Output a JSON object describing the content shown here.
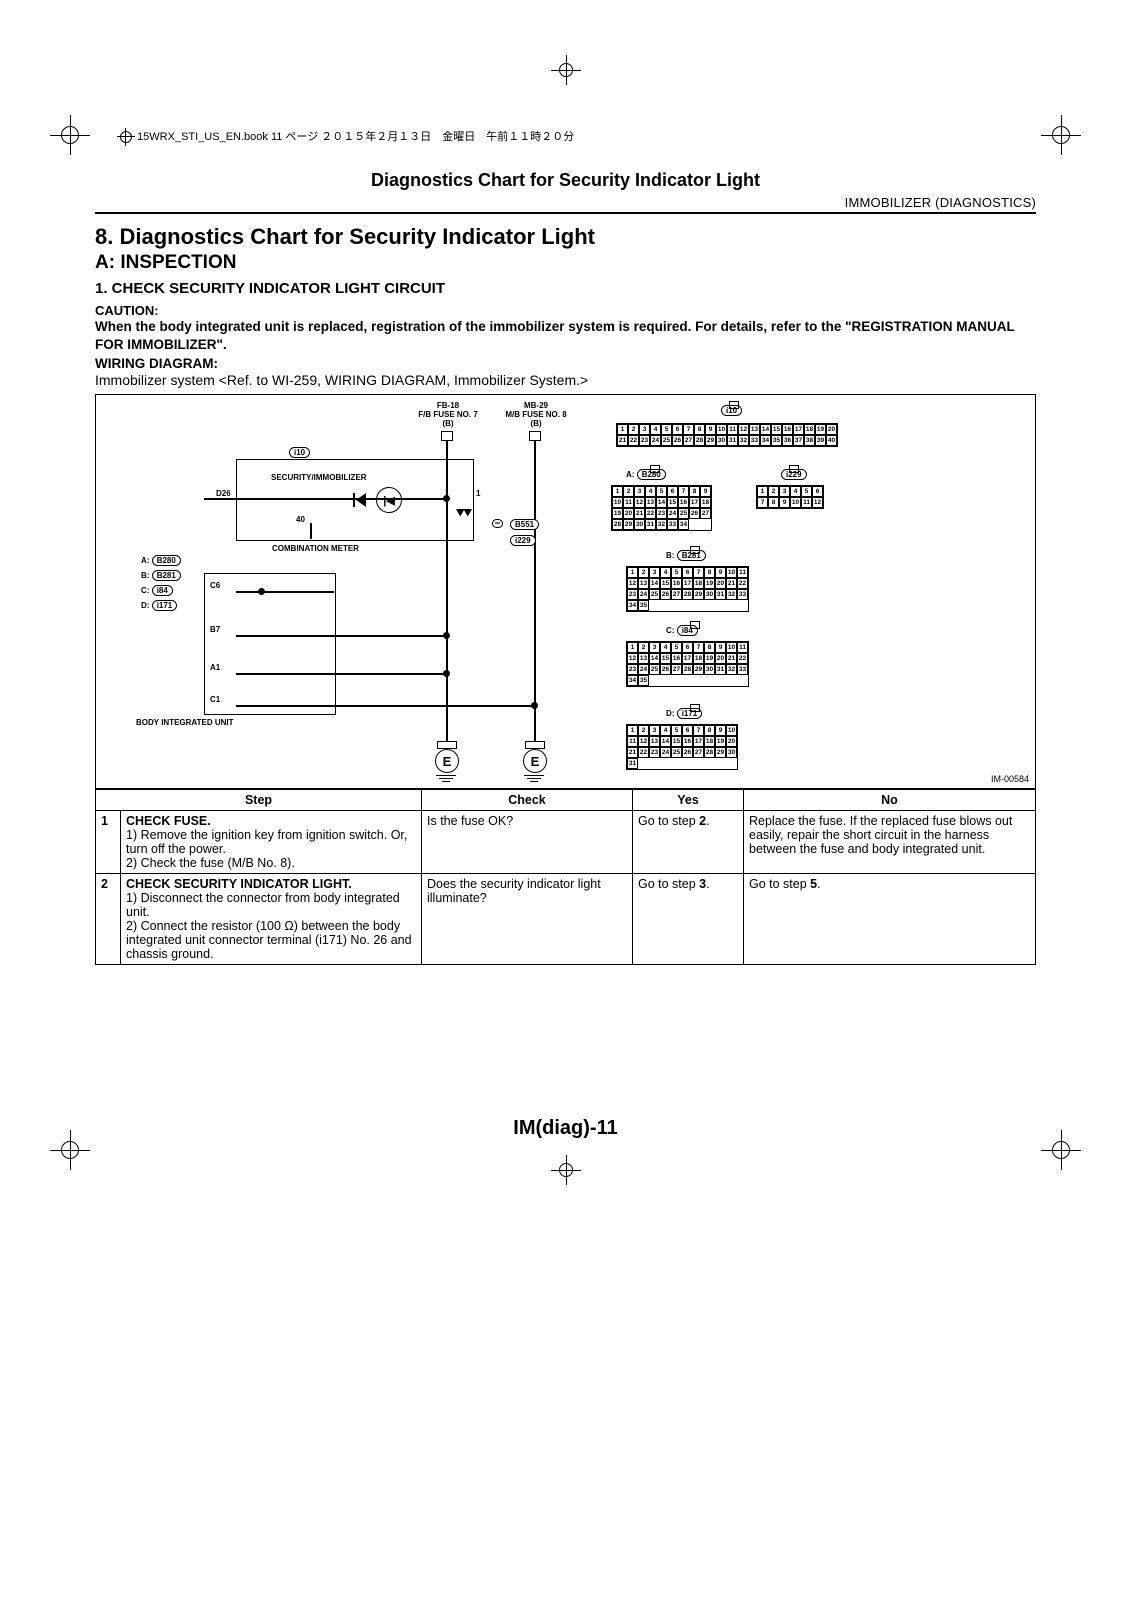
{
  "bookline": "15WRX_STI_US_EN.book  11 ページ   ２０１５年２月１３日　金曜日　午前１１時２０分",
  "running_head": "Diagnostics Chart for Security Indicator Light",
  "subhead_right": "IMMOBILIZER (DIAGNOSTICS)",
  "h1": "8.  Diagnostics Chart for Security Indicator Light",
  "h2": "A:  INSPECTION",
  "h3": "1.  CHECK SECURITY INDICATOR LIGHT CIRCUIT",
  "caution_label": "CAUTION:",
  "caution_text": "When the body integrated unit is replaced, registration of the immobilizer system is required. For details, refer to the \"REGISTRATION MANUAL FOR IMMOBILIZER\".",
  "wiring_label": "WIRING DIAGRAM:",
  "ref_text": "Immobilizer system <Ref. to WI-259, WIRING DIAGRAM, Immobilizer System.>",
  "diagram": {
    "fuse1_top": "FB-18",
    "fuse1_mid": "F/B FUSE NO. 7",
    "fuse1_bot": "(B)",
    "fuse2_top": "MB-29",
    "fuse2_mid": "M/B FUSE NO. 8",
    "fuse2_bot": "(B)",
    "sec_imb": "SECURITY/IMMOBILIZER",
    "comb_meter": "COMBINATION METER",
    "biu": "BODY INTEGRATED UNIT",
    "pills": {
      "i10": "i10",
      "b280": "B280",
      "b281": "B281",
      "i229": "i229",
      "i84": "i84",
      "i171": "i171",
      "b551": "B551"
    },
    "pin_d26": "D26",
    "pin_1": "1",
    "pin_40": "40",
    "pin_c6": "C6",
    "pin_b7": "B7",
    "pin_a1": "A1",
    "pin_c1": "C1",
    "legend_a": "A:",
    "legend_b": "B:",
    "legend_c": "C:",
    "legend_d": "D:",
    "e_label": "E",
    "diagram_id": "IM-00584"
  },
  "table": {
    "headers": [
      "",
      "Step",
      "Check",
      "Yes",
      "No"
    ],
    "rows": [
      {
        "num": "1",
        "step_title": "CHECK FUSE.",
        "step_body": "1)  Remove the ignition key from ignition switch. Or, turn off the power.\n2)  Check the fuse (M/B No. 8).",
        "check": "Is the fuse OK?",
        "yes": "Go to step 2.",
        "no": "Replace the fuse. If the replaced fuse blows out easily, repair the short circuit in the harness between the fuse and body integrated unit."
      },
      {
        "num": "2",
        "step_title": "CHECK SECURITY INDICATOR LIGHT.",
        "step_body": "1)  Disconnect the connector from body integrated unit.\n2)  Connect the resistor (100 Ω) between the body integrated unit connector terminal (i171) No. 26 and chassis ground.",
        "check": "Does the security indicator light illuminate?",
        "yes": "Go to step 3.",
        "no": "Go to step 5."
      }
    ]
  },
  "footer": "IM(diag)-11"
}
